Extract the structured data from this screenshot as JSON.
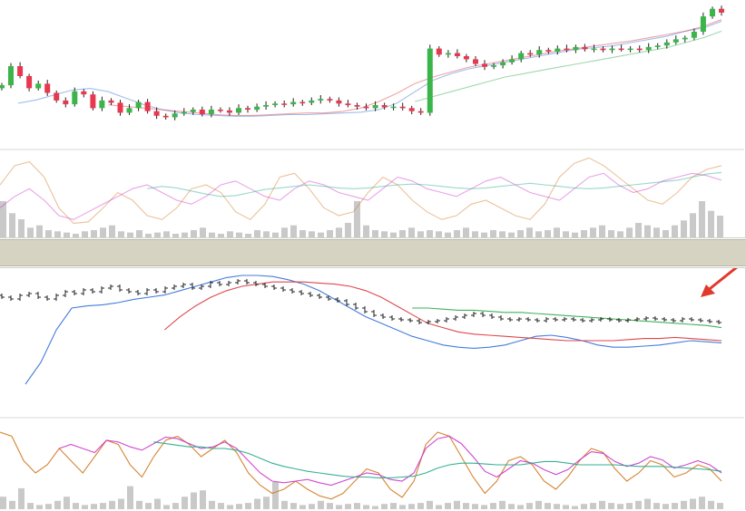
{
  "colors": {
    "up": "#3bb54a",
    "down": "#e8384f",
    "ohlc": "#222222",
    "ma_blue": "#2f6fd6",
    "ma_red": "#d9343a",
    "ma_green": "#2fa84a",
    "osc_orange": "#d2781e",
    "osc_magenta": "#cc33cc",
    "osc_teal": "#1fa88a",
    "volume": "#c9c9c9",
    "arrow": "#e03a2c",
    "splitter": "#d6d3c2"
  },
  "chart_data": [
    {
      "type": "candlestick",
      "panel": "top-price",
      "closes": [
        70,
        95,
        82,
        66,
        72,
        60,
        50,
        45,
        62,
        58,
        40,
        50,
        47,
        34,
        40,
        48,
        36,
        30,
        28,
        33,
        35,
        38,
        32,
        38,
        37,
        34,
        40,
        38,
        42,
        44,
        46,
        45,
        48,
        47,
        50,
        52,
        50,
        46,
        44,
        42,
        40,
        44,
        41,
        42,
        40,
        36,
        34,
        118,
        110,
        112,
        108,
        104,
        98,
        94,
        96,
        100,
        104,
        112,
        110,
        116,
        114,
        118,
        116,
        120,
        117,
        118,
        116,
        118,
        117,
        118,
        116,
        120,
        122,
        126,
        130,
        132,
        140,
        160,
        170,
        165
      ]
    },
    {
      "type": "line",
      "panel": "top-moving-averages",
      "series": [
        {
          "color_key": "ma_blue",
          "values": [
            60,
            64,
            70,
            76,
            78,
            74,
            66,
            58,
            52,
            48,
            46,
            45,
            44,
            44,
            45,
            46,
            46,
            47,
            48,
            49,
            52,
            60,
            74,
            88,
            96,
            102,
            106,
            110,
            114,
            118,
            122,
            126,
            128,
            130,
            134,
            138,
            142,
            148,
            152,
            160
          ]
        },
        {
          "color_key": "ma_red",
          "values": [
            null,
            null,
            null,
            null,
            null,
            58,
            56,
            54,
            52,
            50,
            48,
            46,
            45,
            45,
            46,
            47,
            48,
            48,
            50,
            54,
            62,
            72,
            84,
            92,
            98,
            104,
            108,
            112,
            116,
            120,
            124,
            127,
            130,
            133,
            136,
            140,
            144,
            148,
            154,
            162
          ]
        },
        {
          "color_key": "ma_green",
          "values": [
            null,
            null,
            null,
            null,
            null,
            null,
            null,
            null,
            null,
            null,
            null,
            null,
            null,
            null,
            null,
            null,
            null,
            null,
            null,
            null,
            null,
            null,
            62,
            68,
            74,
            80,
            86,
            92,
            96,
            100,
            104,
            108,
            112,
            116,
            120,
            124,
            128,
            134,
            140,
            148
          ]
        }
      ]
    },
    {
      "type": "bar",
      "panel": "top-volume",
      "values": [
        30,
        20,
        15,
        8,
        10,
        6,
        5,
        4,
        3,
        5,
        6,
        8,
        10,
        5,
        4,
        6,
        3,
        4,
        5,
        3,
        4,
        6,
        8,
        4,
        3,
        5,
        4,
        3,
        6,
        5,
        4,
        8,
        10,
        6,
        5,
        4,
        6,
        8,
        12,
        30,
        10,
        6,
        5,
        4,
        6,
        8,
        5,
        6,
        5,
        4,
        6,
        8,
        5,
        4,
        6,
        5,
        4,
        6,
        8,
        5,
        6,
        8,
        5,
        4,
        6,
        8,
        10,
        6,
        5,
        8,
        12,
        10,
        8,
        6,
        10,
        14,
        20,
        30,
        22,
        18
      ]
    },
    {
      "type": "line",
      "panel": "top-oscillator",
      "series": [
        {
          "color_key": "osc_orange",
          "values": [
            60,
            85,
            90,
            70,
            30,
            10,
            12,
            30,
            50,
            40,
            20,
            15,
            30,
            55,
            60,
            50,
            25,
            15,
            35,
            70,
            75,
            55,
            30,
            20,
            25,
            50,
            70,
            60,
            40,
            25,
            15,
            20,
            35,
            40,
            30,
            20,
            15,
            35,
            70,
            88,
            95,
            85,
            70,
            55,
            40,
            35,
            50,
            70,
            80,
            85
          ]
        },
        {
          "color_key": "osc_magenta",
          "values": [
            30,
            45,
            55,
            40,
            20,
            15,
            25,
            35,
            45,
            55,
            60,
            50,
            40,
            35,
            45,
            60,
            65,
            55,
            45,
            40,
            55,
            65,
            60,
            50,
            45,
            40,
            55,
            70,
            65,
            55,
            50,
            45,
            55,
            65,
            70,
            60,
            50,
            45,
            40,
            55,
            70,
            75,
            60,
            50,
            55,
            65,
            70,
            75,
            72,
            66
          ]
        },
        {
          "color_key": "osc_teal",
          "values": [
            null,
            null,
            null,
            null,
            null,
            null,
            null,
            null,
            null,
            null,
            55,
            58,
            56,
            52,
            48,
            45,
            46,
            50,
            54,
            56,
            58,
            60,
            58,
            56,
            55,
            56,
            58,
            60,
            61,
            60,
            58,
            56,
            55,
            56,
            58,
            60,
            62,
            60,
            58,
            56,
            55,
            56,
            58,
            60,
            62,
            64,
            66,
            70,
            74,
            76
          ]
        }
      ]
    },
    {
      "type": "ohlc",
      "panel": "bottom-price",
      "closes": [
        80,
        78,
        82,
        84,
        80,
        78,
        82,
        86,
        84,
        88,
        86,
        90,
        92,
        88,
        86,
        84,
        88,
        86,
        90,
        92,
        94,
        90,
        92,
        96,
        94,
        96,
        98,
        96,
        94,
        92,
        90,
        88,
        86,
        84,
        82,
        80,
        78,
        76,
        72,
        68,
        64,
        60,
        58,
        56,
        55,
        54,
        52,
        53,
        54,
        56,
        58,
        60,
        62,
        60,
        58,
        56,
        55,
        56,
        55,
        54,
        56,
        55,
        56,
        55,
        54,
        55,
        56,
        55,
        54,
        55,
        56,
        57,
        56,
        55,
        54,
        56,
        55,
        54,
        53,
        52
      ]
    },
    {
      "type": "line",
      "panel": "bottom-moving-averages",
      "series": [
        {
          "color_key": "ma_blue",
          "values": [
            0,
            20,
            50,
            70,
            72,
            73,
            75,
            78,
            80,
            82,
            86,
            90,
            94,
            98,
            100,
            100,
            99,
            96,
            92,
            86,
            78,
            70,
            62,
            56,
            50,
            44,
            40,
            36,
            34,
            33,
            34,
            36,
            40,
            44,
            45,
            43,
            40,
            36,
            34,
            34,
            35,
            36,
            38,
            40,
            39,
            38
          ]
        },
        {
          "color_key": "ma_red",
          "values": [
            null,
            null,
            null,
            null,
            null,
            null,
            null,
            null,
            null,
            50,
            62,
            72,
            80,
            86,
            90,
            92,
            94,
            94,
            94,
            93,
            92,
            90,
            86,
            80,
            72,
            64,
            56,
            52,
            48,
            46,
            45,
            44,
            43,
            42,
            41,
            40,
            40,
            40,
            40,
            41,
            42,
            42,
            43,
            42,
            41,
            40
          ]
        },
        {
          "color_key": "ma_green",
          "values": [
            null,
            null,
            null,
            null,
            null,
            null,
            null,
            null,
            null,
            null,
            null,
            null,
            null,
            null,
            null,
            null,
            null,
            null,
            null,
            null,
            null,
            null,
            null,
            null,
            null,
            70,
            70,
            69,
            68,
            68,
            67,
            66,
            66,
            65,
            64,
            63,
            62,
            61,
            60,
            59,
            58,
            57,
            56,
            55,
            54,
            52
          ]
        }
      ]
    },
    {
      "type": "bar",
      "panel": "bottom-volume",
      "values": [
        12,
        8,
        20,
        6,
        4,
        5,
        8,
        12,
        6,
        4,
        5,
        6,
        8,
        10,
        22,
        8,
        6,
        10,
        4,
        6,
        12,
        16,
        18,
        8,
        6,
        4,
        5,
        6,
        10,
        12,
        26,
        8,
        6,
        4,
        5,
        8,
        6,
        4,
        5,
        6,
        4,
        3,
        5,
        6,
        4,
        5,
        6,
        8,
        4,
        6,
        8,
        6,
        5,
        4,
        6,
        8,
        5,
        4,
        6,
        8,
        6,
        5,
        4,
        3,
        5,
        6,
        8,
        6,
        5,
        6,
        8,
        10,
        6,
        5,
        6,
        8,
        10,
        12,
        8,
        6
      ]
    },
    {
      "type": "line",
      "panel": "bottom-oscillator",
      "series": [
        {
          "color_key": "osc_orange",
          "values": [
            90,
            85,
            55,
            40,
            50,
            70,
            55,
            40,
            60,
            80,
            75,
            50,
            35,
            60,
            80,
            85,
            75,
            60,
            70,
            80,
            65,
            40,
            25,
            15,
            20,
            30,
            20,
            12,
            8,
            15,
            30,
            45,
            40,
            20,
            10,
            30,
            75,
            90,
            85,
            60,
            35,
            15,
            30,
            55,
            60,
            50,
            30,
            20,
            35,
            55,
            70,
            65,
            45,
            30,
            40,
            55,
            50,
            35,
            40,
            50,
            45,
            30
          ]
        },
        {
          "color_key": "osc_magenta",
          "values": [
            null,
            null,
            null,
            null,
            null,
            70,
            75,
            70,
            65,
            80,
            78,
            72,
            68,
            76,
            84,
            82,
            76,
            70,
            72,
            78,
            70,
            55,
            40,
            30,
            28,
            30,
            32,
            28,
            25,
            30,
            35,
            40,
            38,
            32,
            30,
            40,
            70,
            82,
            85,
            76,
            60,
            42,
            35,
            45,
            55,
            52,
            44,
            38,
            44,
            56,
            66,
            64,
            54,
            48,
            52,
            60,
            56,
            46,
            50,
            55,
            50,
            40
          ]
        },
        {
          "color_key": "osc_teal",
          "values": [
            null,
            null,
            null,
            null,
            null,
            null,
            null,
            null,
            null,
            null,
            null,
            null,
            null,
            78,
            76,
            74,
            72,
            72,
            70,
            70,
            68,
            64,
            58,
            52,
            48,
            45,
            42,
            40,
            38,
            36,
            35,
            35,
            34,
            34,
            35,
            36,
            40,
            46,
            50,
            52,
            52,
            51,
            50,
            50,
            50,
            52,
            54,
            54,
            52,
            50,
            50,
            50,
            50,
            49,
            48,
            48,
            48,
            47,
            46,
            45,
            44,
            42
          ]
        }
      ]
    }
  ]
}
